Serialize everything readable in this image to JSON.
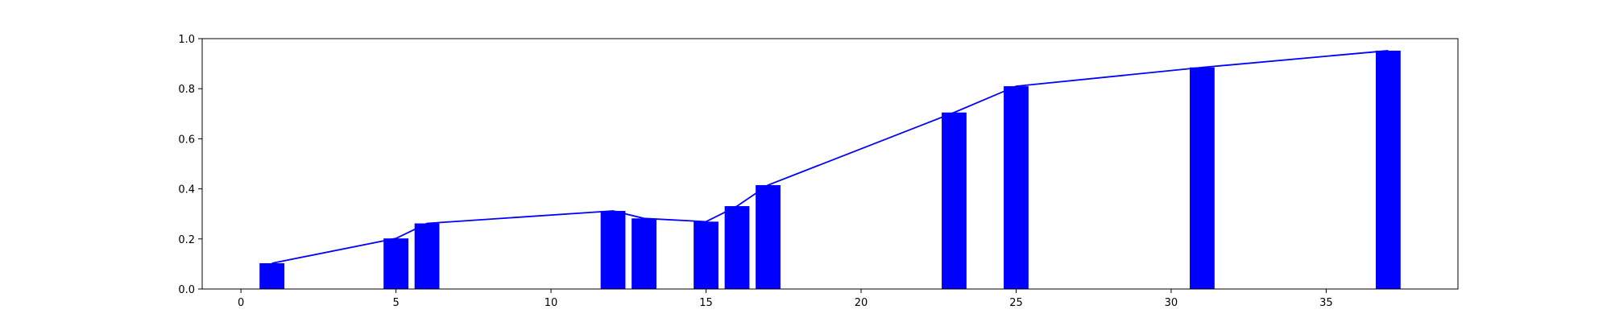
{
  "chart_data": {
    "type": "bar",
    "x": [
      1,
      5,
      6,
      12,
      13,
      15,
      16,
      17,
      23,
      25,
      31,
      37
    ],
    "values": [
      0.103,
      0.202,
      0.262,
      0.312,
      0.282,
      0.269,
      0.331,
      0.415,
      0.705,
      0.81,
      0.885,
      0.952
    ],
    "line_values": [
      0.103,
      0.202,
      0.262,
      0.312,
      0.282,
      0.269,
      0.331,
      0.415,
      0.705,
      0.81,
      0.885,
      0.952
    ],
    "bar_width": 0.8,
    "xlim": [
      -1.25,
      39.25
    ],
    "ylim": [
      0.0,
      1.0
    ],
    "xticks": [
      0,
      5,
      10,
      15,
      20,
      25,
      30,
      35
    ],
    "xtick_labels": [
      "0",
      "5",
      "10",
      "15",
      "20",
      "25",
      "30",
      "35"
    ],
    "yticks": [
      0.0,
      0.2,
      0.4,
      0.6,
      0.8,
      1.0
    ],
    "ytick_labels": [
      "0.0",
      "0.2",
      "0.4",
      "0.6",
      "0.8",
      "1.0"
    ],
    "title": "",
    "xlabel": "",
    "ylabel": "",
    "grid": false,
    "bar_color": "#0000ff",
    "line_color": "#0000ff",
    "legend": false
  }
}
